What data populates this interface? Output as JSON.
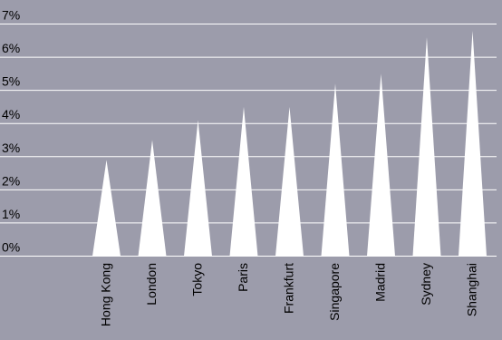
{
  "chart_data": {
    "type": "bar",
    "bar_shape": "triangle",
    "categories": [
      "Hong Kong",
      "London",
      "Tokyo",
      "Paris",
      "Frankfurt",
      "Singapore",
      "Madrid",
      "Sydney",
      "Shanghai"
    ],
    "values": [
      2.9,
      3.5,
      4.1,
      4.5,
      4.5,
      5.2,
      5.5,
      6.6,
      6.8
    ],
    "unit": "%",
    "ylim": [
      0,
      7
    ],
    "yticks": [
      "0%",
      "1%",
      "2%",
      "3%",
      "4%",
      "5%",
      "6%",
      "7%"
    ],
    "grid": true,
    "title": "",
    "xlabel": "",
    "ylabel": ""
  },
  "colors": {
    "background": "#9c9cab",
    "bar": "#ffffff",
    "grid": "#ffffff",
    "text": "#000000"
  }
}
